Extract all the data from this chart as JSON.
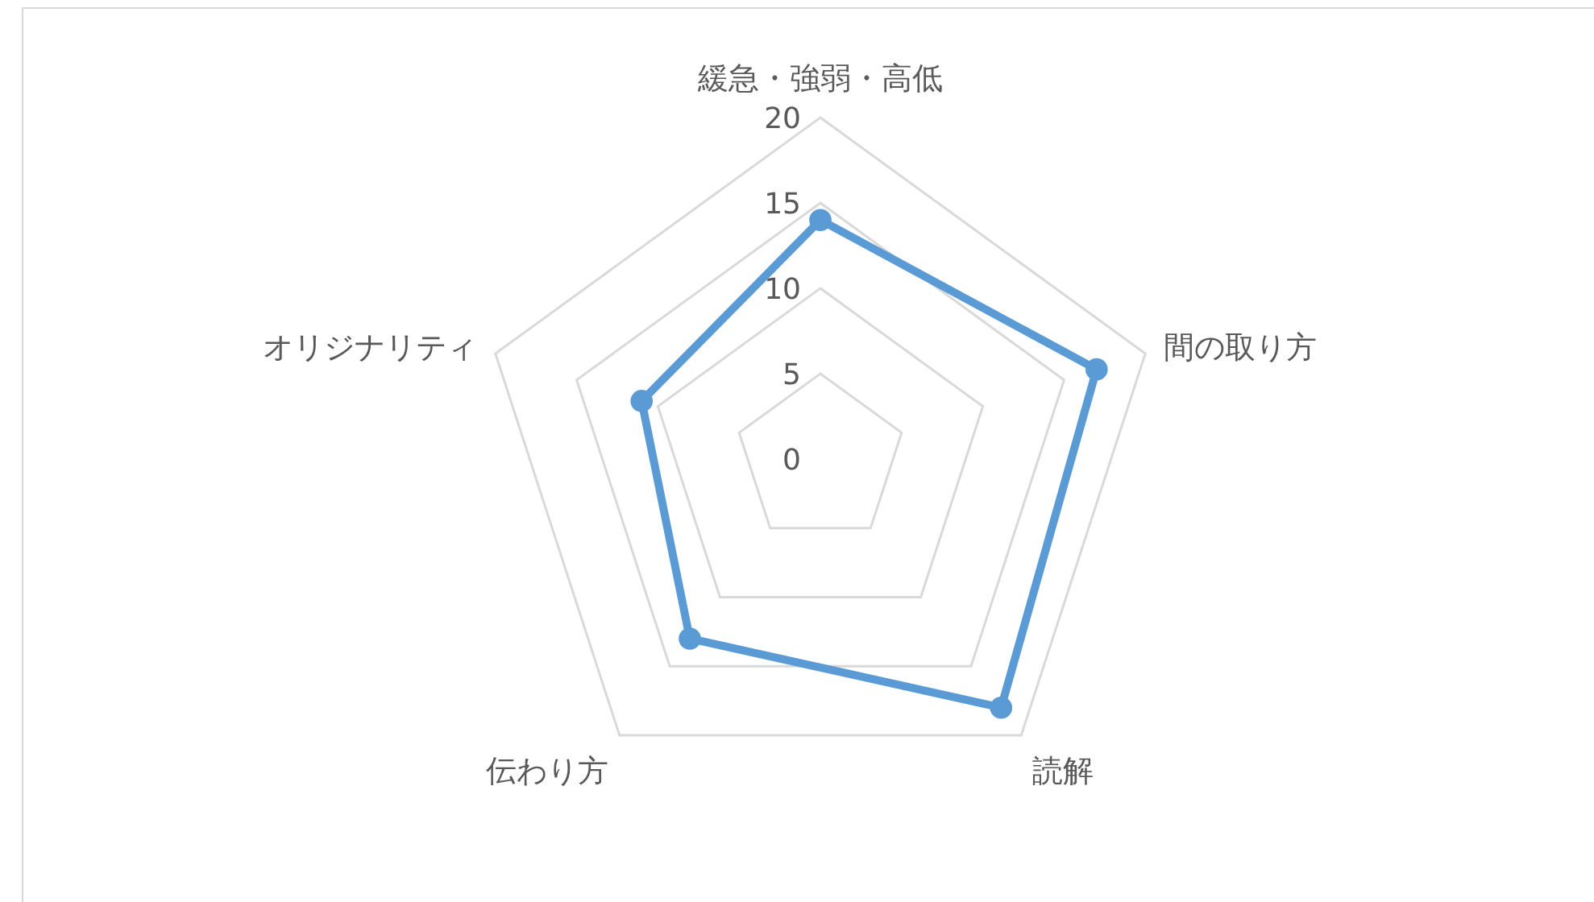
{
  "chart_data": {
    "type": "radar",
    "categories": [
      "緩急・強弱・高低",
      "間の取り方",
      "読解",
      "伝わり方",
      "オリジナリティ"
    ],
    "series": [
      {
        "color": "#5b9bd5",
        "values": [
          14,
          17,
          18,
          13,
          11
        ]
      }
    ],
    "ylim": [
      0,
      20
    ],
    "yticks": [
      0,
      5,
      10,
      15,
      20
    ],
    "grid": true,
    "marker": "circle",
    "line_style": "solid"
  }
}
